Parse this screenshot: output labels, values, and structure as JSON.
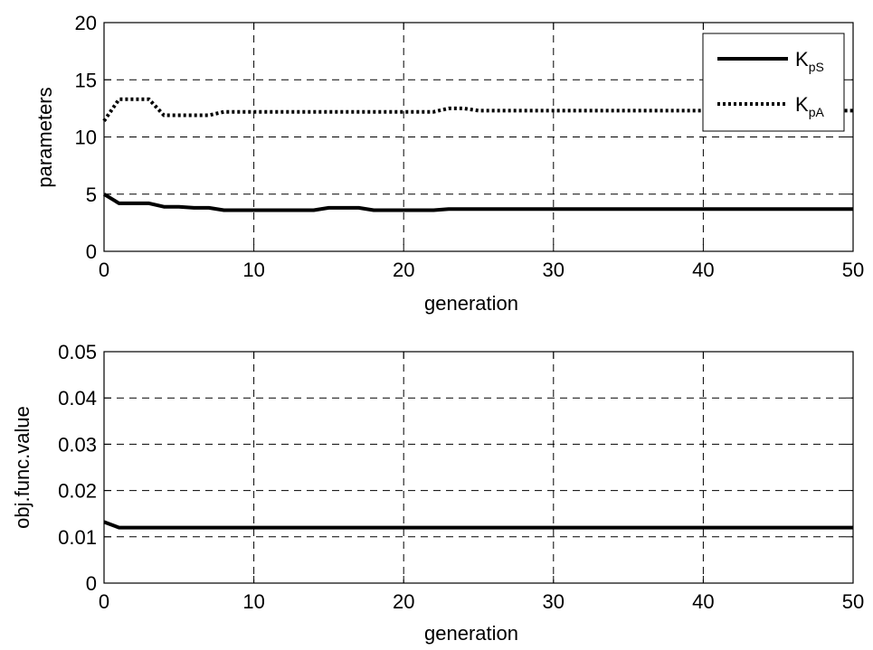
{
  "chart_data": [
    {
      "type": "line",
      "xlabel": "generation",
      "ylabel": "parameters",
      "xlim": [
        0,
        50
      ],
      "ylim": [
        0,
        20
      ],
      "xticks": [
        "0",
        "10",
        "20",
        "30",
        "40",
        "50"
      ],
      "yticks": [
        "0",
        "5",
        "10",
        "15",
        "20"
      ],
      "grid": true,
      "legend_position": "top-right",
      "series": [
        {
          "name": "KpS",
          "name_main": "K",
          "name_sub": "pS",
          "style": "solid",
          "x": [
            0,
            1,
            2,
            3,
            4,
            5,
            6,
            7,
            8,
            9,
            10,
            11,
            12,
            13,
            14,
            15,
            16,
            17,
            18,
            19,
            20,
            21,
            22,
            23,
            24,
            25,
            30,
            35,
            40,
            45,
            50
          ],
          "y": [
            5.0,
            4.2,
            4.2,
            4.2,
            3.9,
            3.9,
            3.8,
            3.8,
            3.6,
            3.6,
            3.6,
            3.6,
            3.6,
            3.6,
            3.6,
            3.8,
            3.8,
            3.8,
            3.6,
            3.6,
            3.6,
            3.6,
            3.6,
            3.7,
            3.7,
            3.7,
            3.7,
            3.7,
            3.7,
            3.7,
            3.7
          ]
        },
        {
          "name": "KpA",
          "name_main": "K",
          "name_sub": "pA",
          "style": "dotted",
          "x": [
            0,
            1,
            2,
            3,
            4,
            5,
            6,
            7,
            8,
            9,
            10,
            15,
            20,
            22,
            23,
            24,
            25,
            30,
            35,
            40,
            45,
            50
          ],
          "y": [
            11.4,
            13.3,
            13.3,
            13.3,
            11.9,
            11.9,
            11.9,
            11.9,
            12.2,
            12.2,
            12.2,
            12.2,
            12.2,
            12.2,
            12.5,
            12.5,
            12.3,
            12.3,
            12.3,
            12.3,
            12.3,
            12.3
          ]
        }
      ]
    },
    {
      "type": "line",
      "xlabel": "generation",
      "ylabel": "obj.func.value",
      "xlim": [
        0,
        50
      ],
      "ylim": [
        0,
        0.05
      ],
      "xticks": [
        "0",
        "10",
        "20",
        "30",
        "40",
        "50"
      ],
      "yticks": [
        "0",
        "0.01",
        "0.02",
        "0.03",
        "0.04",
        "0.05"
      ],
      "grid": true,
      "series": [
        {
          "style": "solid",
          "x": [
            0,
            1,
            10,
            20,
            30,
            40,
            50
          ],
          "y": [
            0.0132,
            0.012,
            0.012,
            0.012,
            0.012,
            0.012,
            0.012
          ]
        }
      ]
    }
  ]
}
